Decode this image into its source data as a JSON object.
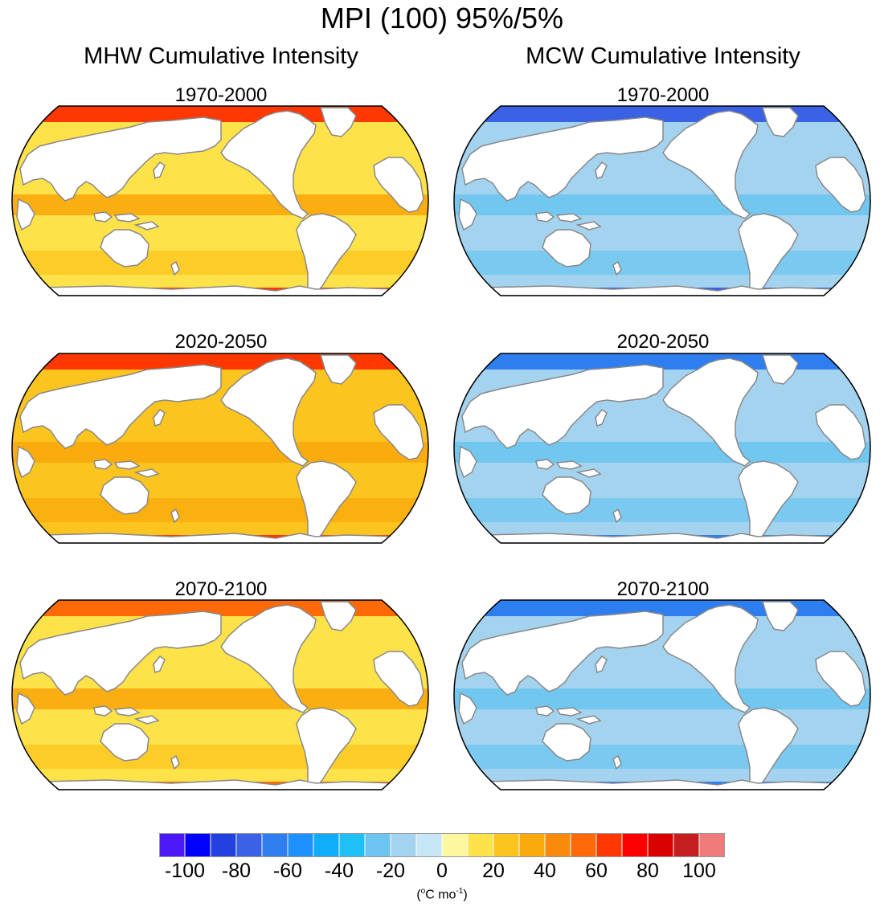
{
  "chart_data": {
    "type": "heatmap",
    "title": "MPI (100) 95%/5%",
    "columns": [
      {
        "title": "MHW Cumulative Intensity",
        "panels": [
          {
            "period": "1970-2000",
            "ocean_typical_value": 15,
            "hotspots_value": 60
          },
          {
            "period": "2020-2050",
            "ocean_typical_value": 20,
            "hotspots_value": 60
          },
          {
            "period": "2070-2100",
            "ocean_typical_value": 18,
            "hotspots_value": 55
          }
        ]
      },
      {
        "title": "MCW Cumulative Intensity",
        "panels": [
          {
            "period": "1970-2000",
            "ocean_typical_value": -15,
            "hotspots_value": -75
          },
          {
            "period": "2020-2050",
            "ocean_typical_value": -20,
            "hotspots_value": -70
          },
          {
            "period": "2070-2100",
            "ocean_typical_value": -20,
            "hotspots_value": -65
          }
        ]
      }
    ],
    "colorbar": {
      "levels": [
        -110,
        -100,
        -90,
        -80,
        -70,
        -60,
        -50,
        -40,
        -30,
        -20,
        -10,
        0,
        10,
        20,
        30,
        40,
        50,
        60,
        70,
        80,
        90,
        100,
        110
      ],
      "colors": [
        "#4b19f5",
        "#0000ff",
        "#2341e0",
        "#3b62e4",
        "#2e7ef0",
        "#1e90ff",
        "#0fadfa",
        "#1ec0f7",
        "#6cc5f0",
        "#a4d3ef",
        "#c7e6f6",
        "#fdf7a0",
        "#fde249",
        "#fbc41f",
        "#f9a90b",
        "#fa8a0c",
        "#fd6a07",
        "#ff3802",
        "#ff0000",
        "#d90000",
        "#c41e1e",
        "#ef7b7b"
      ],
      "tick_labels": [
        "-100",
        "-80",
        "-60",
        "-40",
        "-20",
        "0",
        "20",
        "40",
        "60",
        "80",
        "100"
      ],
      "units_base": "(",
      "units_degree": "o",
      "units_main": "C mo",
      "units_exp": "-1",
      "units_close": ")"
    }
  }
}
